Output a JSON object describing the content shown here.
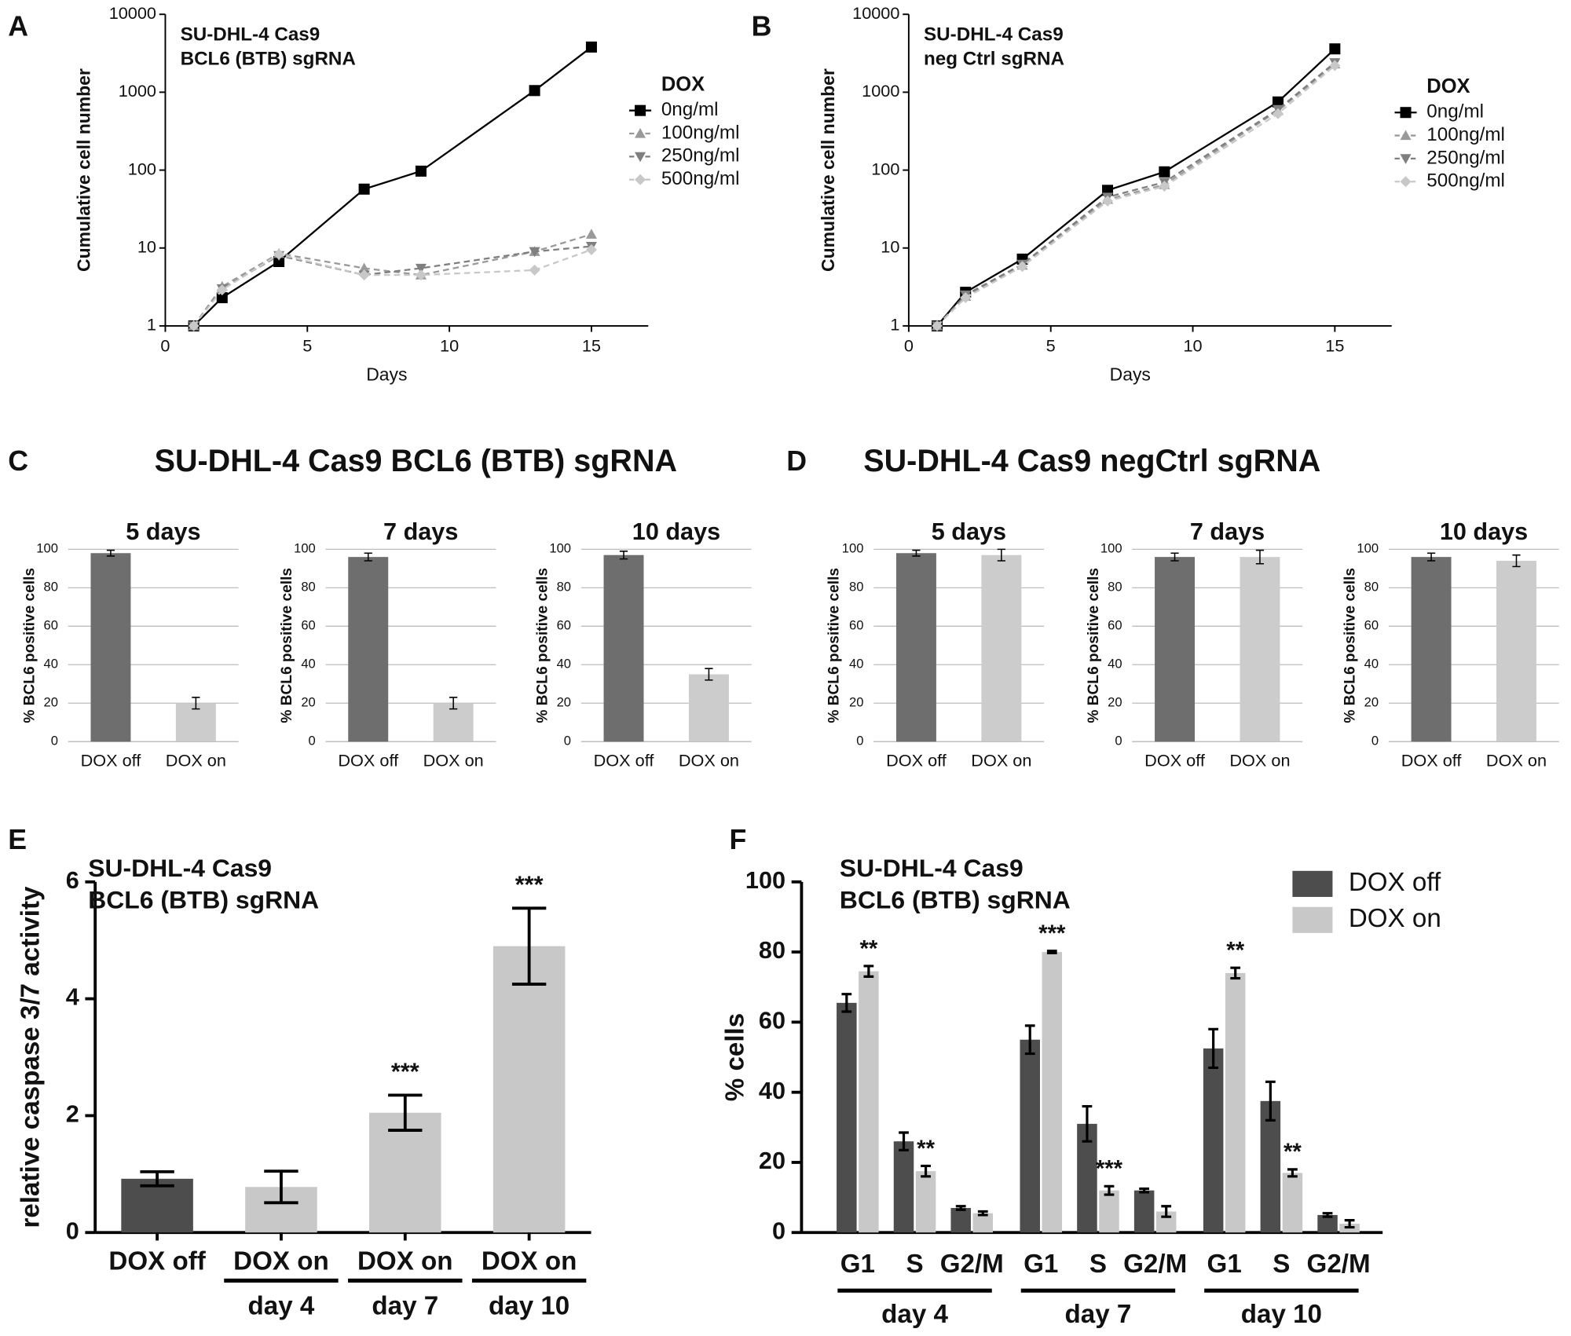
{
  "chart_data": [
    {
      "type": "line",
      "panel": "A",
      "title": [
        "SU-DHL-4 Cas9",
        "BCL6 (BTB) sgRNA"
      ],
      "x_label": "Days",
      "y_label": "Cumulative cell number",
      "x": [
        1,
        2,
        4,
        7,
        9,
        13,
        15
      ],
      "xlim": [
        0,
        17
      ],
      "xticks": [
        0,
        5,
        10,
        15
      ],
      "ylim": [
        1,
        10000
      ],
      "yticks": [
        1,
        10,
        100,
        1000,
        10000
      ],
      "log_y": true,
      "legend_title": "DOX",
      "series": [
        {
          "name": "0ng/ml",
          "color": "#000000",
          "marker": "square",
          "dashed": false,
          "values": [
            1,
            2.3,
            6.7,
            57,
            97,
            1050,
            3800
          ]
        },
        {
          "name": "100ng/ml",
          "color": "#9a9a9a",
          "marker": "triangle-up",
          "dashed": true,
          "values": [
            1,
            3.2,
            8.5,
            5.5,
            4.5,
            9,
            15
          ]
        },
        {
          "name": "250ng/ml",
          "color": "#7f7f7f",
          "marker": "triangle-down",
          "dashed": true,
          "values": [
            1,
            3,
            8,
            4.5,
            5.5,
            9,
            10.5
          ]
        },
        {
          "name": "500ng/ml",
          "color": "#c8c8c8",
          "marker": "diamond",
          "dashed": true,
          "values": [
            1,
            2.9,
            8.3,
            4.5,
            4.5,
            5.2,
            9.5
          ]
        }
      ]
    },
    {
      "type": "line",
      "panel": "B",
      "title": [
        "SU-DHL-4 Cas9",
        "neg Ctrl sgRNA"
      ],
      "x_label": "Days",
      "y_label": "Cumulative cell number",
      "x": [
        1,
        2,
        4,
        7,
        9,
        13,
        15
      ],
      "xlim": [
        0,
        17
      ],
      "xticks": [
        0,
        5,
        10,
        15
      ],
      "ylim": [
        1,
        10000
      ],
      "yticks": [
        1,
        10,
        100,
        1000,
        10000
      ],
      "log_y": true,
      "legend_title": "DOX",
      "series": [
        {
          "name": "0ng/ml",
          "color": "#000000",
          "marker": "square",
          "dashed": false,
          "values": [
            1,
            2.7,
            7.2,
            55,
            95,
            750,
            3600
          ]
        },
        {
          "name": "100ng/ml",
          "color": "#9a9a9a",
          "marker": "triangle-up",
          "dashed": true,
          "values": [
            1,
            2.4,
            6,
            42,
            65,
            580,
            2300
          ]
        },
        {
          "name": "250ng/ml",
          "color": "#7f7f7f",
          "marker": "triangle-down",
          "dashed": true,
          "values": [
            1,
            2.5,
            6.2,
            45,
            70,
            600,
            2400
          ]
        },
        {
          "name": "500ng/ml",
          "color": "#c8c8c8",
          "marker": "diamond",
          "dashed": true,
          "values": [
            1,
            2.3,
            5.8,
            40,
            62,
            530,
            2200
          ]
        }
      ]
    },
    {
      "type": "bar",
      "panel": "C",
      "heading": "SU-DHL-4 Cas9 BCL6 (BTB) sgRNA",
      "title": "5 days",
      "y_label": "% BCL6 positive cells",
      "categories": [
        "DOX off",
        "DOX on"
      ],
      "values": [
        98,
        20
      ],
      "errors": [
        1.5,
        3
      ],
      "colors": [
        "#6e6e6e",
        "#cccccc"
      ],
      "ylim": [
        0,
        100
      ],
      "yticks": [
        0,
        20,
        40,
        60,
        80,
        100
      ],
      "grid": true
    },
    {
      "type": "bar",
      "title": "7 days",
      "y_label": "% BCL6 positive cells",
      "categories": [
        "DOX off",
        "DOX on"
      ],
      "values": [
        96,
        20
      ],
      "errors": [
        2,
        3
      ],
      "colors": [
        "#6e6e6e",
        "#cccccc"
      ],
      "ylim": [
        0,
        100
      ],
      "yticks": [
        0,
        20,
        40,
        60,
        80,
        100
      ],
      "grid": true
    },
    {
      "type": "bar",
      "title": "10 days",
      "y_label": "% BCL6 positive cells",
      "categories": [
        "DOX off",
        "DOX on"
      ],
      "values": [
        97,
        35
      ],
      "errors": [
        2,
        3
      ],
      "colors": [
        "#6e6e6e",
        "#cccccc"
      ],
      "ylim": [
        0,
        100
      ],
      "yticks": [
        0,
        20,
        40,
        60,
        80,
        100
      ],
      "grid": true
    },
    {
      "type": "bar",
      "panel": "D",
      "heading": "SU-DHL-4 Cas9 negCtrl sgRNA",
      "title": "5 days",
      "y_label": "% BCL6 positive cells",
      "categories": [
        "DOX off",
        "DOX on"
      ],
      "values": [
        98,
        97
      ],
      "errors": [
        1.5,
        3
      ],
      "colors": [
        "#6e6e6e",
        "#cccccc"
      ],
      "ylim": [
        0,
        100
      ],
      "yticks": [
        0,
        20,
        40,
        60,
        80,
        100
      ],
      "grid": true
    },
    {
      "type": "bar",
      "title": "7 days",
      "y_label": "% BCL6 positive cells",
      "categories": [
        "DOX off",
        "DOX on"
      ],
      "values": [
        96,
        96
      ],
      "errors": [
        2,
        3.5
      ],
      "colors": [
        "#6e6e6e",
        "#cccccc"
      ],
      "ylim": [
        0,
        100
      ],
      "yticks": [
        0,
        20,
        40,
        60,
        80,
        100
      ],
      "grid": true
    },
    {
      "type": "bar",
      "title": "10 days",
      "y_label": "% BCL6 positive cells",
      "categories": [
        "DOX off",
        "DOX on"
      ],
      "values": [
        96,
        94
      ],
      "errors": [
        2,
        3
      ],
      "colors": [
        "#6e6e6e",
        "#cccccc"
      ],
      "ylim": [
        0,
        100
      ],
      "yticks": [
        0,
        20,
        40,
        60,
        80,
        100
      ],
      "grid": true
    },
    {
      "type": "bar",
      "panel": "E",
      "title": [
        "SU-DHL-4 Cas9",
        "BCL6 (BTB) sgRNA"
      ],
      "y_label": "relative caspase 3/7 activity",
      "categories": [
        "DOX off",
        "DOX on",
        "DOX on",
        "DOX on"
      ],
      "sublabels": [
        null,
        "day 4",
        "day 7",
        "day 10"
      ],
      "values": [
        0.92,
        0.78,
        2.05,
        4.9
      ],
      "errors": [
        0.12,
        0.27,
        0.3,
        0.65
      ],
      "significance": [
        null,
        null,
        "***",
        "***"
      ],
      "colors": [
        "#4d4d4d",
        "#c8c8c8",
        "#c8c8c8",
        "#c8c8c8"
      ],
      "ylim": [
        0,
        6
      ],
      "yticks": [
        0,
        2,
        4,
        6
      ],
      "grid": false
    },
    {
      "type": "grouped_bar",
      "panel": "F",
      "title": [
        "SU-DHL-4 Cas9",
        "BCL6 (BTB) sgRNA"
      ],
      "y_label": "% cells",
      "categories": [
        "G1",
        "S",
        "G2/M",
        "G1",
        "S",
        "G2/M",
        "G1",
        "S",
        "G2/M"
      ],
      "groups": [
        "day 4",
        "day 7",
        "day 10"
      ],
      "series": [
        {
          "name": "DOX off",
          "color": "#4d4d4d",
          "values": [
            65.5,
            26,
            7,
            55,
            31,
            12,
            52.5,
            37.5,
            5
          ],
          "errors": [
            2.5,
            2.5,
            0.5,
            4,
            5,
            0.5,
            5.5,
            5.5,
            0.5
          ]
        },
        {
          "name": "DOX on",
          "color": "#c8c8c8",
          "values": [
            74.5,
            17.5,
            5.5,
            80,
            12,
            6,
            74,
            17,
            2.5
          ],
          "errors": [
            1.5,
            1.5,
            0.5,
            0.3,
            1.2,
            1.5,
            1.5,
            1,
            1
          ],
          "significance": [
            "**",
            "**",
            null,
            "***",
            "***",
            null,
            "**",
            "**",
            null
          ]
        }
      ],
      "ylim": [
        0,
        100
      ],
      "yticks": [
        0,
        20,
        40,
        60,
        80,
        100
      ],
      "grid": false
    }
  ]
}
